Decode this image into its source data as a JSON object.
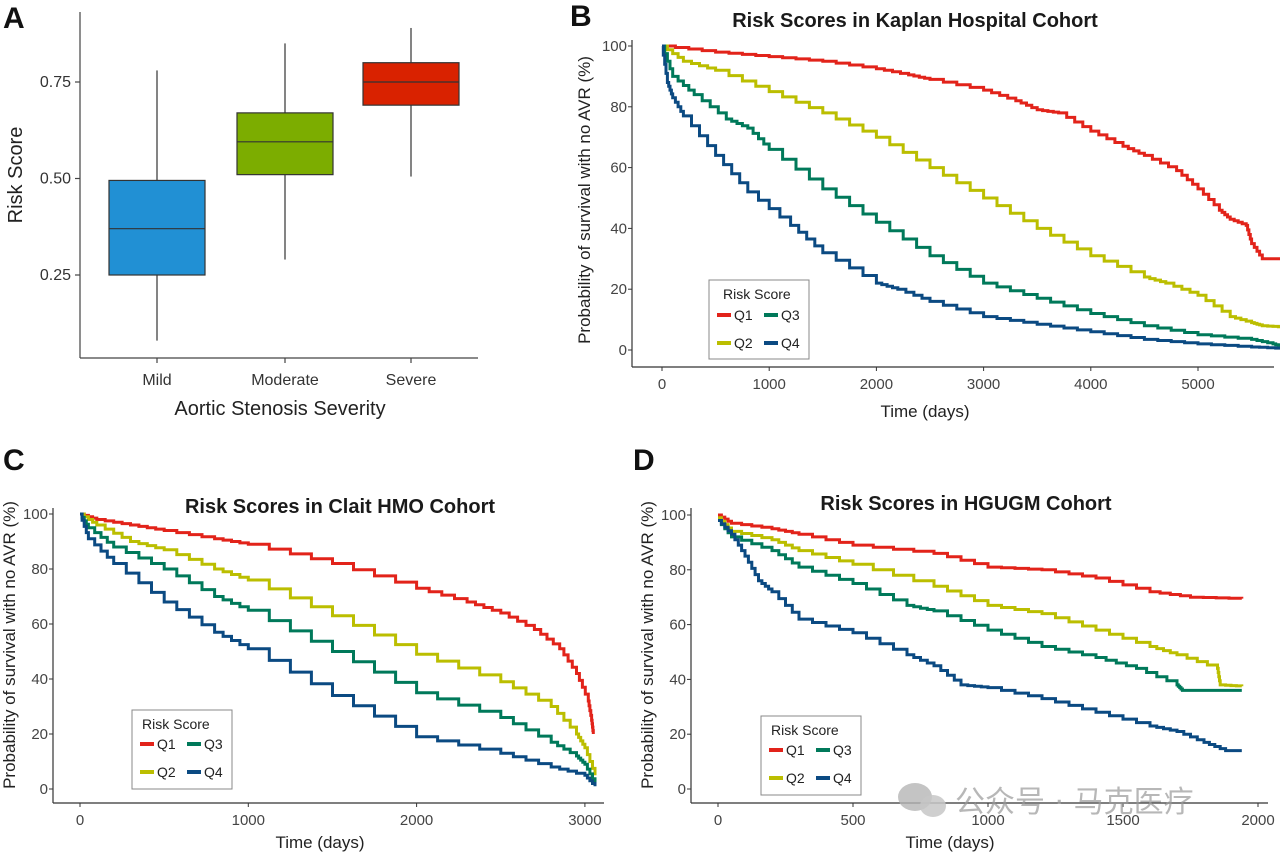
{
  "chart_data": [
    {
      "panel": "A",
      "type": "box",
      "title": "",
      "xlabel": "Aortic Stenosis Severity",
      "ylabel": "Risk Score",
      "ylim": [
        0.05,
        0.93
      ],
      "yticks": [
        0.25,
        0.5,
        0.75
      ],
      "ytick_labels": [
        "0.25",
        "0.50",
        "0.75"
      ],
      "categories": [
        "Mild",
        "Moderate",
        "Severe"
      ],
      "colors": [
        "#2190d4",
        "#7cad00",
        "#d92200"
      ],
      "boxes": [
        {
          "category": "Mild",
          "whisker_low": 0.08,
          "q1": 0.25,
          "median": 0.37,
          "q3": 0.495,
          "whisker_high": 0.78
        },
        {
          "category": "Moderate",
          "whisker_low": 0.29,
          "q1": 0.51,
          "median": 0.595,
          "q3": 0.67,
          "whisker_high": 0.85
        },
        {
          "category": "Severe",
          "whisker_low": 0.505,
          "q1": 0.69,
          "median": 0.75,
          "q3": 0.8,
          "whisker_high": 0.89
        }
      ]
    },
    {
      "panel": "B",
      "type": "line",
      "title": "Risk Scores in Kaplan Hospital Cohort",
      "xlabel": "Time (days)",
      "ylabel": "Probability of survival with no AVR (%)",
      "xlim": [
        -300,
        5800
      ],
      "ylim": [
        -5,
        101
      ],
      "xticks": [
        0,
        1000,
        2000,
        3000,
        4000,
        5000
      ],
      "yticks": [
        0,
        20,
        40,
        60,
        80,
        100
      ],
      "legend": {
        "title": "Risk Score",
        "position": "bottom-left",
        "entries": [
          "Q1",
          "Q2",
          "Q3",
          "Q4"
        ]
      },
      "series": [
        {
          "name": "Q1",
          "color": "#e2231a",
          "points": [
            [
              0,
              100
            ],
            [
              500,
              98
            ],
            [
              1000,
              96.5
            ],
            [
              1500,
              95
            ],
            [
              2000,
              92.5
            ],
            [
              2300,
              90.5
            ],
            [
              2500,
              89
            ],
            [
              3000,
              85.5
            ],
            [
              3300,
              82
            ],
            [
              3500,
              79
            ],
            [
              3700,
              78
            ],
            [
              4000,
              72
            ],
            [
              4300,
              67
            ],
            [
              4500,
              64
            ],
            [
              4800,
              59
            ],
            [
              5000,
              53
            ],
            [
              5200,
              46
            ],
            [
              5300,
              43
            ],
            [
              5450,
              41
            ],
            [
              5500,
              35
            ],
            [
              5600,
              30
            ],
            [
              5800,
              30
            ]
          ]
        },
        {
          "name": "Q2",
          "color": "#bbbe00",
          "points": [
            [
              0,
              100
            ],
            [
              200,
              95
            ],
            [
              500,
              92
            ],
            [
              1000,
              85
            ],
            [
              1500,
              78
            ],
            [
              2000,
              70
            ],
            [
              2500,
              60
            ],
            [
              3000,
              50
            ],
            [
              3500,
              40
            ],
            [
              4000,
              31
            ],
            [
              4500,
              24
            ],
            [
              4700,
              22
            ],
            [
              5000,
              18
            ],
            [
              5300,
              11
            ],
            [
              5500,
              9
            ],
            [
              5600,
              8
            ],
            [
              5800,
              7.5
            ]
          ]
        },
        {
          "name": "Q3",
          "color": "#00795a",
          "points": [
            [
              0,
              100
            ],
            [
              100,
              90
            ],
            [
              300,
              84
            ],
            [
              600,
              76
            ],
            [
              800,
              73
            ],
            [
              1000,
              66
            ],
            [
              1500,
              53
            ],
            [
              2000,
              42
            ],
            [
              2500,
              31
            ],
            [
              3000,
              22
            ],
            [
              3500,
              17
            ],
            [
              4000,
              12
            ],
            [
              4500,
              8
            ],
            [
              5000,
              5
            ],
            [
              5500,
              3.5
            ],
            [
              5700,
              2
            ],
            [
              5800,
              1
            ]
          ]
        },
        {
          "name": "Q4",
          "color": "#0b4a82",
          "points": [
            [
              0,
              100
            ],
            [
              50,
              88
            ],
            [
              100,
              83
            ],
            [
              200,
              77
            ],
            [
              500,
              64
            ],
            [
              800,
              52
            ],
            [
              1200,
              41
            ],
            [
              1500,
              32
            ],
            [
              2000,
              22
            ],
            [
              2200,
              20
            ],
            [
              2500,
              16
            ],
            [
              3000,
              11
            ],
            [
              3500,
              8.5
            ],
            [
              4000,
              6
            ],
            [
              4500,
              3.5
            ],
            [
              5000,
              2
            ],
            [
              5500,
              1
            ],
            [
              5800,
              0.5
            ]
          ]
        }
      ]
    },
    {
      "panel": "C",
      "type": "line",
      "title": "Risk Scores in Clait HMO Cohort",
      "xlabel": "Time (days)",
      "ylabel": "Probability of survival with no AVR (%)",
      "xlim": [
        -160,
        3100
      ],
      "ylim": [
        -5,
        101
      ],
      "xticks": [
        0,
        1000,
        2000,
        3000
      ],
      "yticks": [
        0,
        20,
        40,
        60,
        80,
        100
      ],
      "legend": {
        "title": "Risk Score",
        "position": "bottom-left",
        "entries": [
          "Q1",
          "Q2",
          "Q3",
          "Q4"
        ]
      },
      "series": [
        {
          "name": "Q1",
          "color": "#e2231a",
          "points": [
            [
              0,
              100
            ],
            [
              100,
              98
            ],
            [
              300,
              96
            ],
            [
              500,
              94
            ],
            [
              800,
              91
            ],
            [
              1000,
              89
            ],
            [
              1500,
              82
            ],
            [
              2000,
              73
            ],
            [
              2300,
              68
            ],
            [
              2500,
              64
            ],
            [
              2700,
              58
            ],
            [
              2850,
              51
            ],
            [
              2950,
              42
            ],
            [
              3020,
              32
            ],
            [
              3040,
              25
            ],
            [
              3050,
              20
            ]
          ]
        },
        {
          "name": "Q2",
          "color": "#bbbe00",
          "points": [
            [
              0,
              100
            ],
            [
              100,
              96
            ],
            [
              300,
              90
            ],
            [
              500,
              87
            ],
            [
              800,
              80
            ],
            [
              1000,
              76
            ],
            [
              1500,
              63
            ],
            [
              2000,
              49
            ],
            [
              2500,
              39
            ],
            [
              2800,
              30
            ],
            [
              2950,
              20
            ],
            [
              3000,
              15
            ],
            [
              3060,
              5
            ]
          ]
        },
        {
          "name": "Q3",
          "color": "#00795a",
          "points": [
            [
              0,
              100
            ],
            [
              50,
              95
            ],
            [
              200,
              88
            ],
            [
              500,
              80
            ],
            [
              800,
              70
            ],
            [
              1000,
              65
            ],
            [
              1500,
              50
            ],
            [
              2000,
              35
            ],
            [
              2500,
              26
            ],
            [
              2800,
              17
            ],
            [
              2950,
              12
            ],
            [
              3000,
              9
            ],
            [
              3060,
              2
            ]
          ]
        },
        {
          "name": "Q4",
          "color": "#0b4a82",
          "points": [
            [
              0,
              100
            ],
            [
              50,
              91
            ],
            [
              200,
              82
            ],
            [
              500,
              68
            ],
            [
              800,
              57
            ],
            [
              1000,
              51
            ],
            [
              1500,
              34
            ],
            [
              2000,
              19
            ],
            [
              2500,
              13
            ],
            [
              2800,
              8
            ],
            [
              3000,
              5
            ],
            [
              3060,
              1
            ]
          ]
        }
      ]
    },
    {
      "panel": "D",
      "type": "line",
      "title": "Risk Scores in HGUGM Cohort",
      "xlabel": "Time (days)",
      "ylabel": "Probability of survival with no AVR (%)",
      "xlim": [
        -100,
        2000
      ],
      "ylim": [
        -5,
        101
      ],
      "xticks": [
        0,
        500,
        1000,
        1500,
        2000
      ],
      "yticks": [
        0,
        20,
        40,
        60,
        80,
        100
      ],
      "legend": {
        "title": "Risk Score",
        "position": "bottom-left",
        "entries": [
          "Q1",
          "Q2",
          "Q3",
          "Q4"
        ]
      },
      "series": [
        {
          "name": "Q1",
          "color": "#e2231a",
          "points": [
            [
              0,
              100
            ],
            [
              50,
              97
            ],
            [
              200,
              95
            ],
            [
              300,
              93
            ],
            [
              500,
              89
            ],
            [
              800,
              86
            ],
            [
              1000,
              81
            ],
            [
              1200,
              80
            ],
            [
              1400,
              77
            ],
            [
              1600,
              72
            ],
            [
              1750,
              70
            ],
            [
              1940,
              69.5
            ]
          ]
        },
        {
          "name": "Q2",
          "color": "#bbbe00",
          "points": [
            [
              0,
              99
            ],
            [
              50,
              94
            ],
            [
              200,
              91
            ],
            [
              300,
              87
            ],
            [
              500,
              82
            ],
            [
              800,
              74
            ],
            [
              1000,
              67
            ],
            [
              1200,
              64
            ],
            [
              1400,
              58
            ],
            [
              1600,
              52
            ],
            [
              1700,
              49
            ],
            [
              1850,
              44
            ],
            [
              1860,
              38
            ],
            [
              1940,
              37.5
            ]
          ]
        },
        {
          "name": "Q3",
          "color": "#00795a",
          "points": [
            [
              0,
              98
            ],
            [
              50,
              92
            ],
            [
              200,
              87
            ],
            [
              300,
              81
            ],
            [
              500,
              75
            ],
            [
              700,
              67
            ],
            [
              800,
              65
            ],
            [
              1000,
              58
            ],
            [
              1200,
              52
            ],
            [
              1400,
              48
            ],
            [
              1550,
              44
            ],
            [
              1700,
              38
            ],
            [
              1720,
              36
            ],
            [
              1940,
              36
            ]
          ]
        },
        {
          "name": "Q4",
          "color": "#0b4a82",
          "points": [
            [
              0,
              98
            ],
            [
              50,
              93
            ],
            [
              100,
              85
            ],
            [
              150,
              76
            ],
            [
              200,
              72
            ],
            [
              300,
              62
            ],
            [
              500,
              57
            ],
            [
              700,
              49
            ],
            [
              800,
              45
            ],
            [
              900,
              38
            ],
            [
              1000,
              37
            ],
            [
              1200,
              33
            ],
            [
              1400,
              28
            ],
            [
              1600,
              23
            ],
            [
              1700,
              21
            ],
            [
              1800,
              17
            ],
            [
              1880,
              14
            ],
            [
              1940,
              14
            ]
          ]
        }
      ]
    }
  ],
  "panel_letters": [
    "A",
    "B",
    "C",
    "D"
  ],
  "watermark": "公众号 · 马克医疗"
}
